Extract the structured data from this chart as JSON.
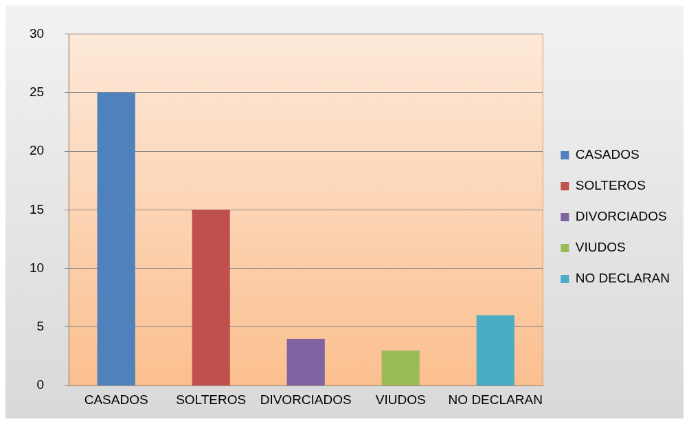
{
  "chart_data": {
    "type": "bar",
    "categories": [
      "CASADOS",
      "SOLTEROS",
      "DIVORCIADOS",
      "VIUDOS",
      "NO DECLARAN"
    ],
    "series": [
      {
        "name": "CASADOS",
        "color": "#4f81bd",
        "values": [
          25,
          null,
          null,
          null,
          null
        ]
      },
      {
        "name": "SOLTEROS",
        "color": "#c0504d",
        "values": [
          null,
          15,
          null,
          null,
          null
        ]
      },
      {
        "name": "DIVORCIADOS",
        "color": "#8064a2",
        "values": [
          null,
          null,
          4,
          null,
          null
        ]
      },
      {
        "name": "VIUDOS",
        "color": "#9bbb59",
        "values": [
          null,
          null,
          null,
          3,
          null
        ]
      },
      {
        "name": "NO DECLARAN",
        "color": "#4bacc6",
        "values": [
          null,
          null,
          null,
          null,
          6
        ]
      }
    ],
    "ylim": [
      0,
      30
    ],
    "yticks": [
      0,
      5,
      10,
      15,
      20,
      25,
      30
    ],
    "grid": "y",
    "legend": "right"
  }
}
